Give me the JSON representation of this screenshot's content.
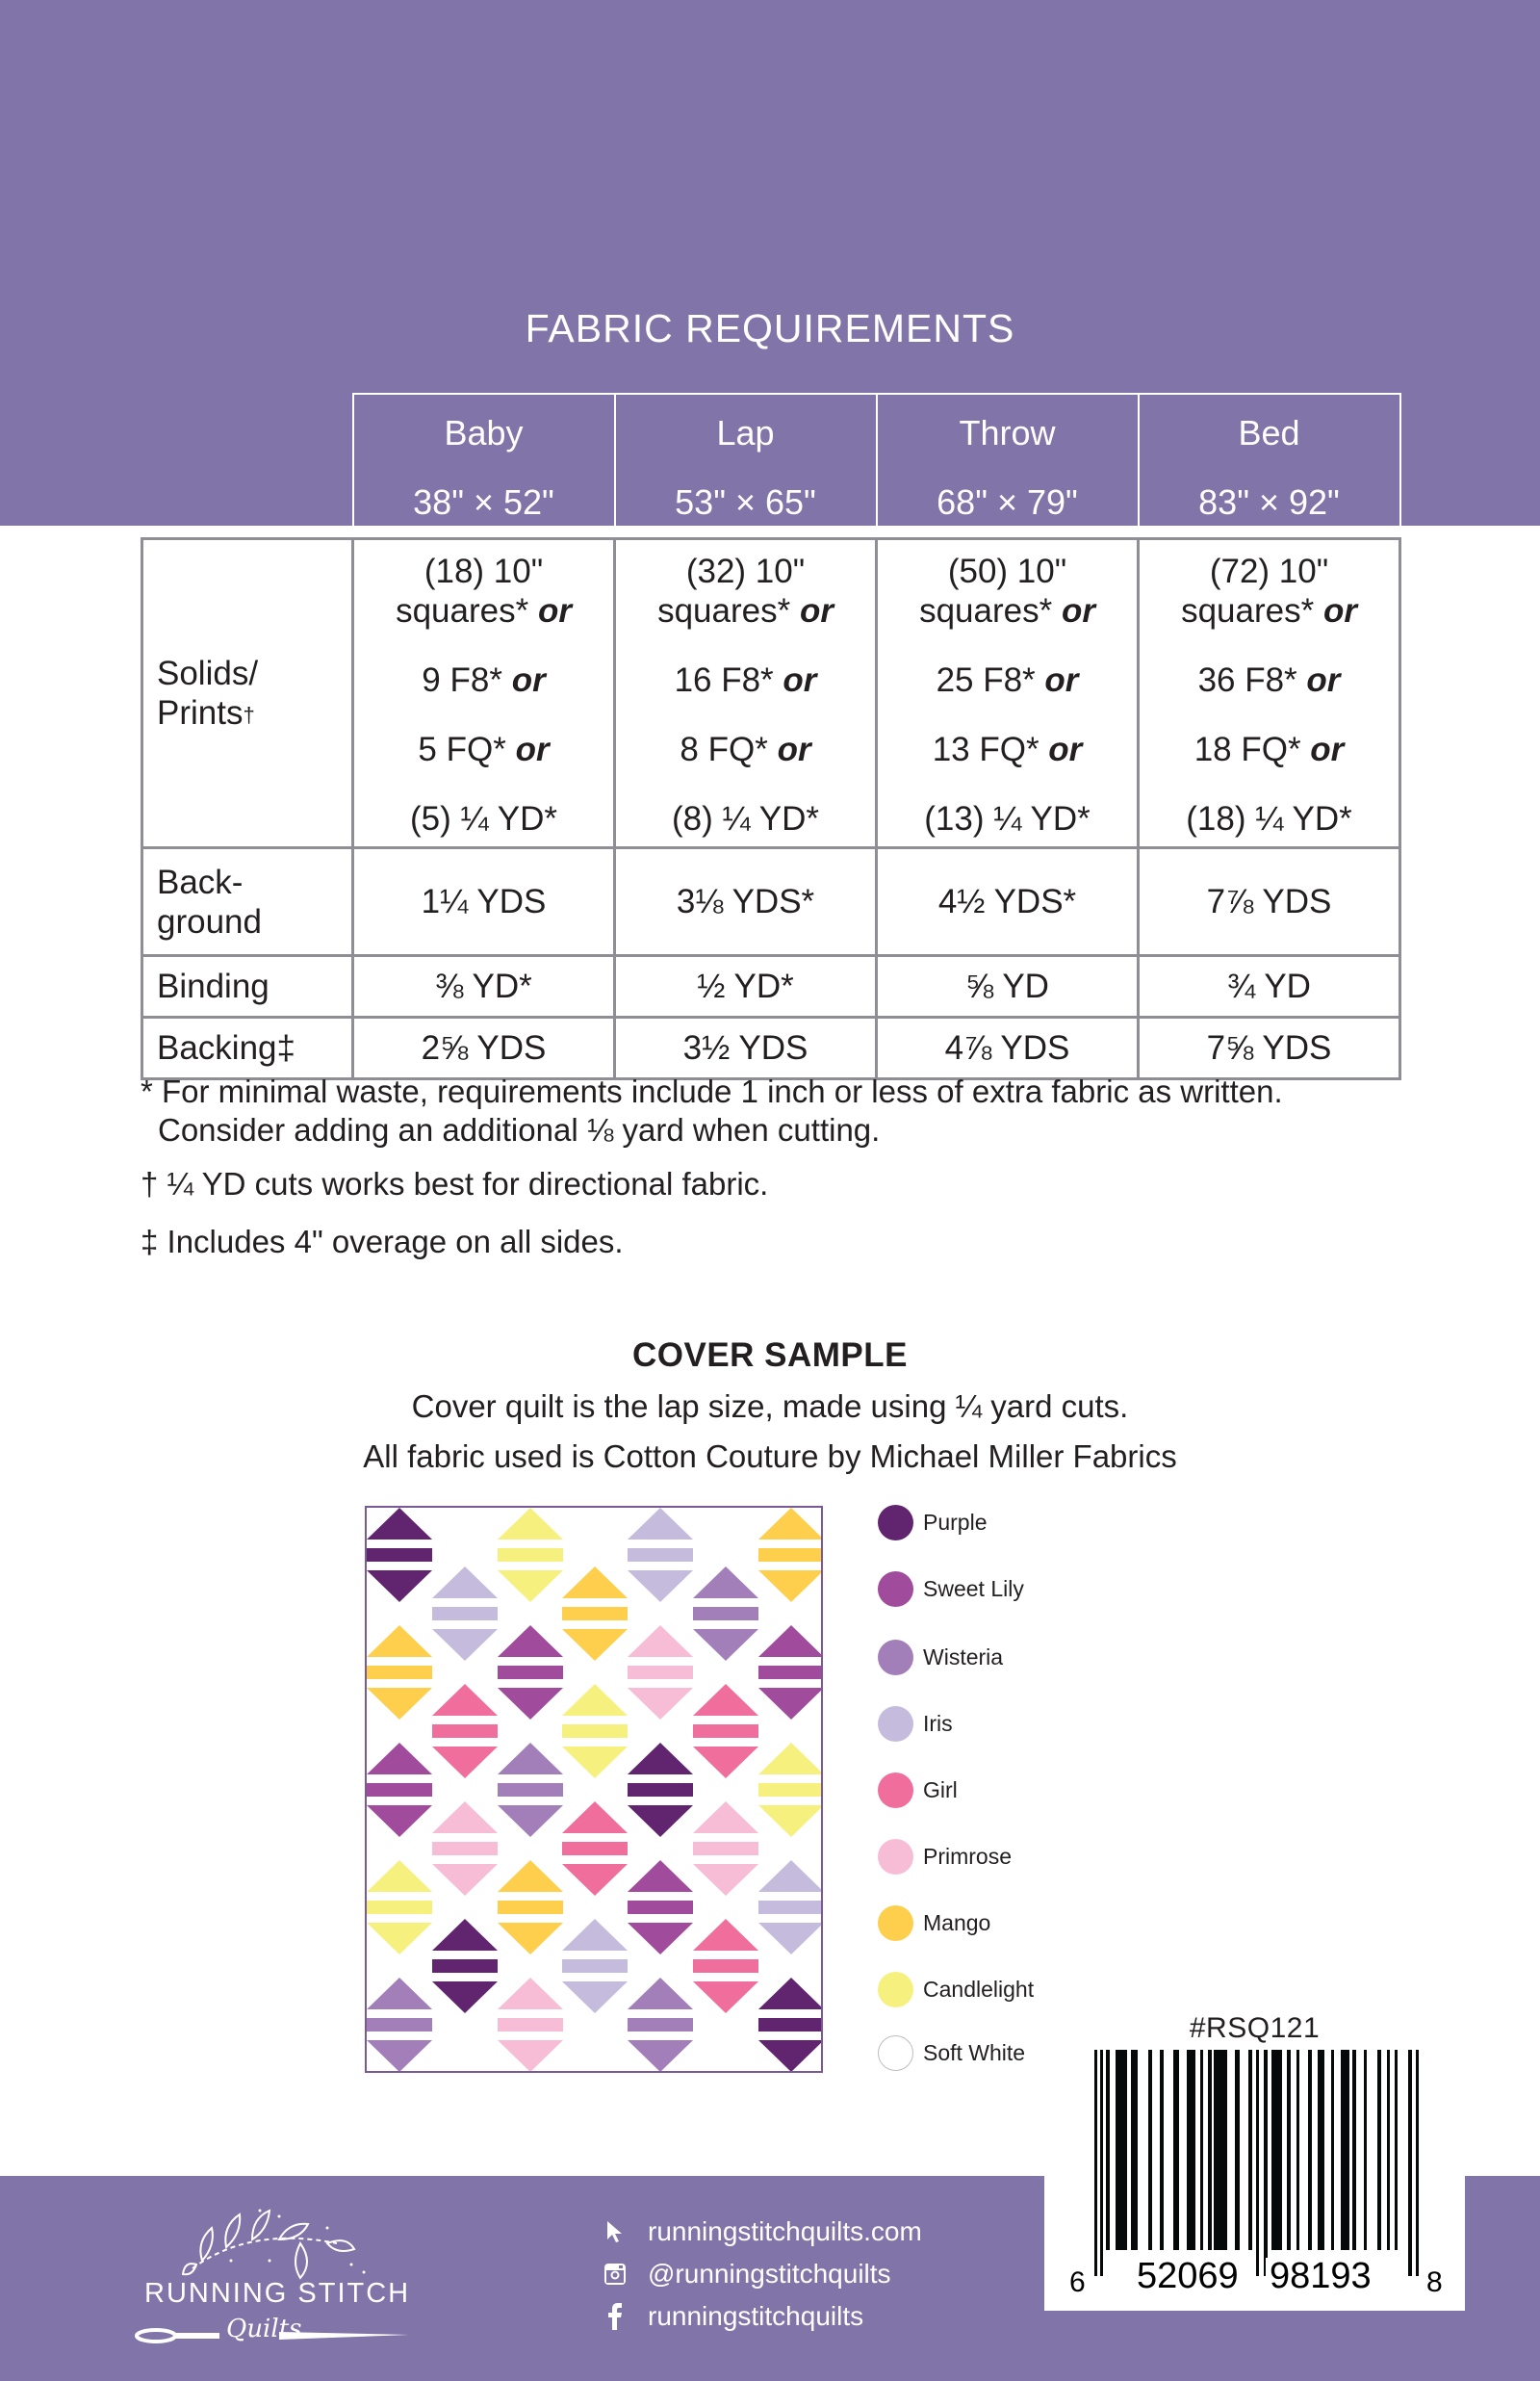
{
  "page_title": "FABRIC REQUIREMENTS",
  "table": {
    "columns": [
      {
        "name": "Baby",
        "size": "38\" × 52\""
      },
      {
        "name": "Lap",
        "size": "53\" × 65\""
      },
      {
        "name": "Throw",
        "size": "68\" × 79\""
      },
      {
        "name": "Bed",
        "size": "83\" × 92\""
      }
    ],
    "rows": {
      "solids": {
        "label_line1": "Solids/",
        "label_line2": "Prints",
        "label_mark": "†",
        "or_word": "or",
        "cells": [
          {
            "squares": "(18) 10\"",
            "squares_word": "squares",
            "f8": "9 F8",
            "fq": "5 FQ",
            "yd": "(5) ¼ YD"
          },
          {
            "squares": "(32) 10\"",
            "squares_word": "squares",
            "f8": "16 F8",
            "fq": "8 FQ",
            "yd": "(8) ¼ YD"
          },
          {
            "squares": "(50) 10\"",
            "squares_word": "squares",
            "f8": "25 F8",
            "fq": "13 FQ",
            "yd": "(13) ¼ YD"
          },
          {
            "squares": "(72) 10\"",
            "squares_word": "squares",
            "f8": "36 F8",
            "fq": "18 FQ",
            "yd": "(18) ¼ YD"
          }
        ]
      },
      "background": {
        "label_line1": "Back-",
        "label_line2": "ground",
        "cells": [
          "1¼ YDS",
          "3⅛ YDS*",
          "4½ YDS*",
          "7⅞ YDS"
        ]
      },
      "binding": {
        "label": "Binding",
        "cells": [
          "⅜ YD*",
          "½ YD*",
          "⅝ YD",
          "¾ YD"
        ]
      },
      "backing": {
        "label": "Backing‡",
        "cells": [
          "2⅝ YDS",
          "3½ YDS",
          "4⅞ YDS",
          "7⅝ YDS"
        ]
      }
    },
    "asterisk": "*"
  },
  "notes": {
    "note1": "* For minimal waste, requirements include 1 inch or less of extra fabric as written. Consider adding an additional ⅛ yard when cutting.",
    "note2": "† ¼ YD cuts works best for directional fabric.",
    "note3": "‡ Includes 4\" overage on all sides."
  },
  "cover_sample": {
    "heading": "COVER SAMPLE",
    "line1": "Cover quilt is the lap size, made using ¼ yard cuts.",
    "line2": "All fabric used is Cotton Couture by Michael Miller Fabrics"
  },
  "colors": {
    "Purple": "#612570",
    "Sweet Lily": "#a14b9c",
    "Wisteria": "#a37fba",
    "Iris": "#c5bcdd",
    "Girl": "#ef6e9c",
    "Primrose": "#f7bcd6",
    "Mango": "#fdcf4c",
    "Candlelight": "#f6f17f",
    "Soft White": "#ffffff",
    "brand_purple": "#8174a8"
  },
  "legend": [
    {
      "name": "Purple",
      "color": "#612570"
    },
    {
      "name": "Sweet Lily",
      "color": "#a14b9c"
    },
    {
      "name": "Wisteria",
      "color": "#a37fba"
    },
    {
      "name": "Iris",
      "color": "#c5bcdd"
    },
    {
      "name": "Girl",
      "color": "#ef6e9c"
    },
    {
      "name": "Primrose",
      "color": "#f7bcd6"
    },
    {
      "name": "Mango",
      "color": "#fdcf4c"
    },
    {
      "name": "Candlelight",
      "color": "#f6f17f"
    },
    {
      "name": "Soft White",
      "color": "#ffffff"
    }
  ],
  "quilt_columns": [
    [
      "Purple",
      "Mango",
      "Sweet Lily",
      "Candlelight",
      "Wisteria"
    ],
    [
      "Iris",
      "Girl",
      "Primrose",
      "Purple"
    ],
    [
      "Candlelight",
      "Sweet Lily",
      "Wisteria",
      "Mango",
      "Primrose"
    ],
    [
      "Mango",
      "Candlelight",
      "Girl",
      "Iris"
    ],
    [
      "Iris",
      "Primrose",
      "Purple",
      "Sweet Lily",
      "Wisteria"
    ],
    [
      "Wisteria",
      "Girl",
      "Primrose",
      "Girl"
    ],
    [
      "Mango",
      "Sweet Lily",
      "Candlelight",
      "Iris",
      "Purple"
    ]
  ],
  "barcode": {
    "sku": "#RSQ121",
    "digit_left": "6",
    "group_left": "52069",
    "group_right": "98193",
    "digit_right": "8"
  },
  "footer": {
    "brand_name": "RUNNING STITCH",
    "brand_script": "Quilts",
    "contacts": [
      {
        "icon": "cursor-arrow-icon",
        "text": "runningstitchquilts.com"
      },
      {
        "icon": "instagram-icon",
        "text": "@runningstitchquilts"
      },
      {
        "icon": "facebook-icon",
        "text": "runningstitchquilts"
      }
    ]
  }
}
